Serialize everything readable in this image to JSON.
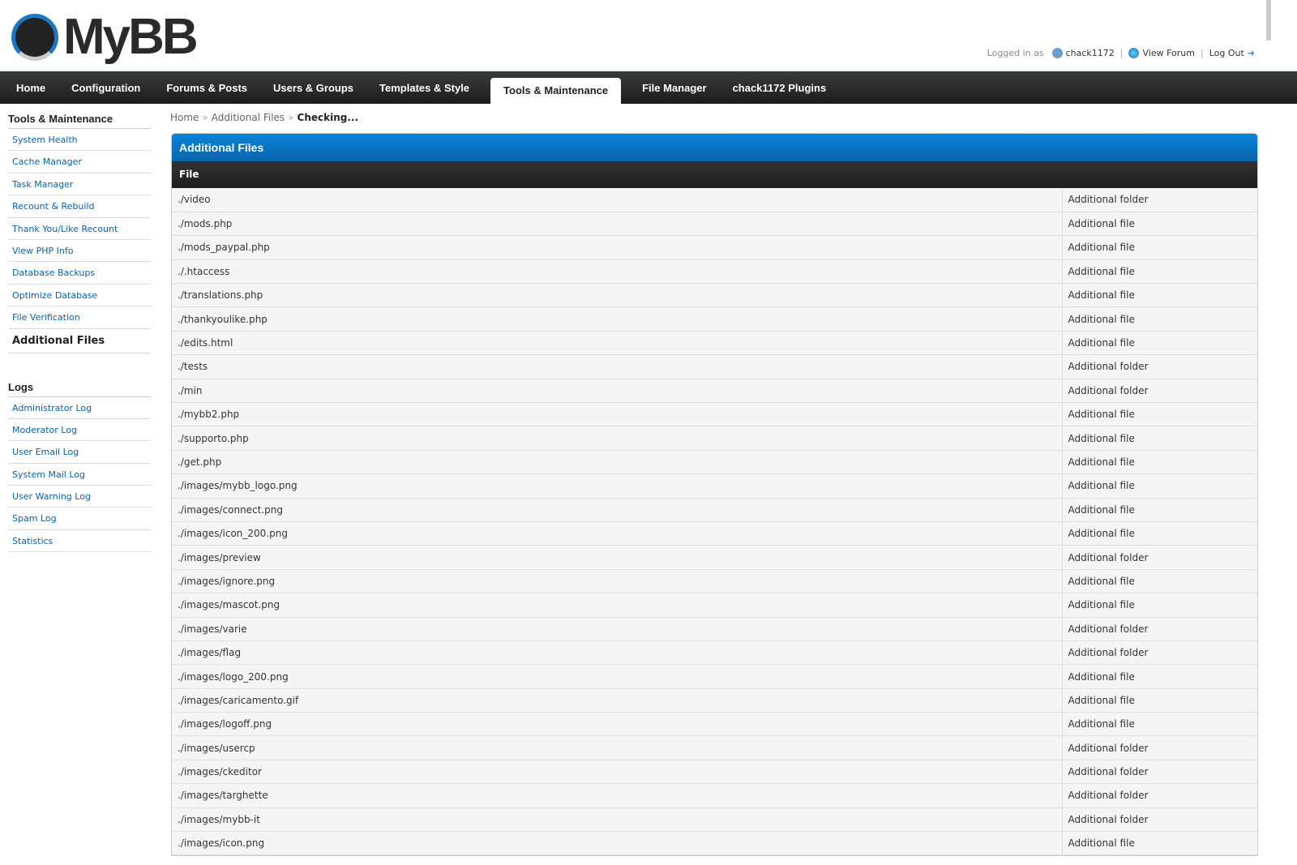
{
  "header": {
    "logo_text": "MyBB",
    "logged_in_as": "Logged in as",
    "username": "chack1172",
    "view_forum": "View Forum",
    "log_out": "Log Out"
  },
  "nav": [
    "Home",
    "Configuration",
    "Forums & Posts",
    "Users & Groups",
    "Templates & Style",
    "Tools & Maintenance",
    "File Manager",
    "chack1172 Plugins"
  ],
  "nav_active": "Tools & Maintenance",
  "sidebar": {
    "section1_title": "Tools & Maintenance",
    "section1_items": [
      "System Health",
      "Cache Manager",
      "Task Manager",
      "Recount & Rebuild",
      "Thank You/Like Recount",
      "View PHP Info",
      "Database Backups",
      "Optimize Database",
      "File Verification",
      "Additional Files"
    ],
    "section2_title": "Logs",
    "section2_items": [
      "Administrator Log",
      "Moderator Log",
      "User Email Log",
      "System Mail Log",
      "User Warning Log",
      "Spam Log",
      "Statistics"
    ]
  },
  "breadcrumb": [
    "Home",
    "Additional Files",
    "Checking..."
  ],
  "panel": {
    "title": "Additional Files",
    "column": "File"
  },
  "rows": [
    [
      "./video",
      "Additional folder"
    ],
    [
      "./mods.php",
      "Additional file"
    ],
    [
      "./mods_paypal.php",
      "Additional file"
    ],
    [
      "./.htaccess",
      "Additional file"
    ],
    [
      "./translations.php",
      "Additional file"
    ],
    [
      "./thankyoulike.php",
      "Additional file"
    ],
    [
      "./edits.html",
      "Additional file"
    ],
    [
      "./tests",
      "Additional folder"
    ],
    [
      "./min",
      "Additional folder"
    ],
    [
      "./mybb2.php",
      "Additional file"
    ],
    [
      "./supporto.php",
      "Additional file"
    ],
    [
      "./get.php",
      "Additional file"
    ],
    [
      "./images/mybb_logo.png",
      "Additional file"
    ],
    [
      "./images/connect.png",
      "Additional file"
    ],
    [
      "./images/icon_200.png",
      "Additional file"
    ],
    [
      "./images/preview",
      "Additional folder"
    ],
    [
      "./images/ignore.png",
      "Additional file"
    ],
    [
      "./images/mascot.png",
      "Additional file"
    ],
    [
      "./images/varie",
      "Additional folder"
    ],
    [
      "./images/flag",
      "Additional folder"
    ],
    [
      "./images/logo_200.png",
      "Additional file"
    ],
    [
      "./images/caricamento.gif",
      "Additional file"
    ],
    [
      "./images/logoff.png",
      "Additional file"
    ],
    [
      "./images/usercp",
      "Additional folder"
    ],
    [
      "./images/ckeditor",
      "Additional folder"
    ],
    [
      "./images/targhette",
      "Additional folder"
    ],
    [
      "./images/mybb-it",
      "Additional folder"
    ],
    [
      "./images/icon.png",
      "Additional file"
    ]
  ]
}
